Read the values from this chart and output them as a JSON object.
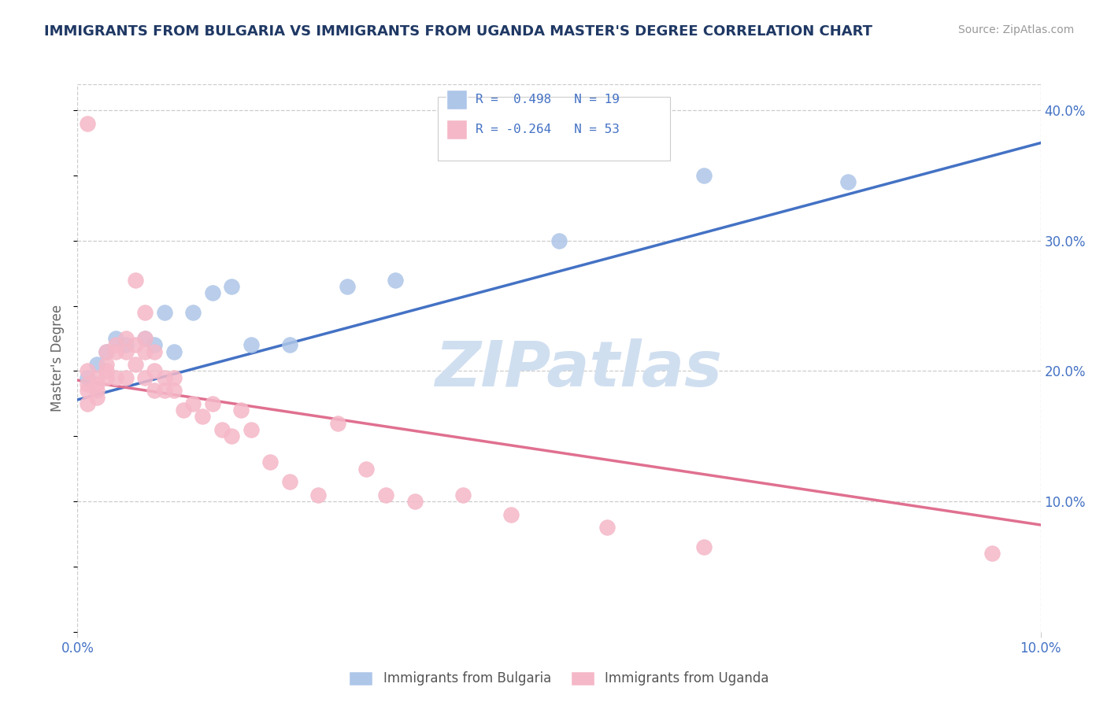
{
  "title": "IMMIGRANTS FROM BULGARIA VS IMMIGRANTS FROM UGANDA MASTER'S DEGREE CORRELATION CHART",
  "source": "Source: ZipAtlas.com",
  "ylabel": "Master's Degree",
  "xmin": 0.0,
  "xmax": 0.1,
  "ymin": 0.0,
  "ymax": 0.42,
  "yticks": [
    0.1,
    0.2,
    0.3,
    0.4
  ],
  "ytick_labels": [
    "10.0%",
    "20.0%",
    "30.0%",
    "40.0%"
  ],
  "xtick_labels": [
    "0.0%",
    "10.0%"
  ],
  "grid_color": "#cccccc",
  "background_color": "#ffffff",
  "watermark_text": "ZIPatlas",
  "watermark_color": "#d0dff0",
  "legend_line1": "R =  0.498   N = 19",
  "legend_line2": "R = -0.264   N = 53",
  "blue_color": "#aec6e8",
  "pink_color": "#f5b8c8",
  "blue_line_color": "#4472c4",
  "pink_line_color": "#e07090",
  "title_color": "#1f3864",
  "axis_label_color": "#4472c4",
  "ylabel_color": "#666666",
  "legend_label1": "Immigrants from Bulgaria",
  "legend_label2": "Immigrants from Uganda",
  "blue_scatter_x": [
    0.001,
    0.002,
    0.003,
    0.004,
    0.005,
    0.007,
    0.008,
    0.009,
    0.01,
    0.012,
    0.014,
    0.016,
    0.018,
    0.022,
    0.028,
    0.033,
    0.05,
    0.065,
    0.08
  ],
  "blue_scatter_y": [
    0.195,
    0.205,
    0.215,
    0.225,
    0.22,
    0.225,
    0.22,
    0.245,
    0.215,
    0.245,
    0.26,
    0.265,
    0.22,
    0.22,
    0.265,
    0.27,
    0.3,
    0.35,
    0.345
  ],
  "pink_scatter_x": [
    0.001,
    0.001,
    0.001,
    0.001,
    0.001,
    0.002,
    0.002,
    0.002,
    0.002,
    0.003,
    0.003,
    0.003,
    0.003,
    0.004,
    0.004,
    0.004,
    0.005,
    0.005,
    0.005,
    0.006,
    0.006,
    0.006,
    0.007,
    0.007,
    0.007,
    0.007,
    0.008,
    0.008,
    0.008,
    0.009,
    0.009,
    0.01,
    0.01,
    0.011,
    0.012,
    0.013,
    0.014,
    0.015,
    0.016,
    0.017,
    0.018,
    0.02,
    0.022,
    0.025,
    0.027,
    0.03,
    0.032,
    0.035,
    0.04,
    0.045,
    0.055,
    0.065,
    0.095
  ],
  "pink_scatter_y": [
    0.19,
    0.185,
    0.175,
    0.2,
    0.39,
    0.195,
    0.19,
    0.185,
    0.18,
    0.215,
    0.205,
    0.2,
    0.195,
    0.22,
    0.215,
    0.195,
    0.225,
    0.215,
    0.195,
    0.27,
    0.22,
    0.205,
    0.245,
    0.225,
    0.215,
    0.195,
    0.215,
    0.2,
    0.185,
    0.195,
    0.185,
    0.195,
    0.185,
    0.17,
    0.175,
    0.165,
    0.175,
    0.155,
    0.15,
    0.17,
    0.155,
    0.13,
    0.115,
    0.105,
    0.16,
    0.125,
    0.105,
    0.1,
    0.105,
    0.09,
    0.08,
    0.065,
    0.06
  ],
  "blue_line_x0": 0.0,
  "blue_line_y0": 0.178,
  "blue_line_x1": 0.1,
  "blue_line_y1": 0.375,
  "pink_line_x0": 0.0,
  "pink_line_y0": 0.193,
  "pink_line_x1": 0.1,
  "pink_line_y1": 0.082
}
